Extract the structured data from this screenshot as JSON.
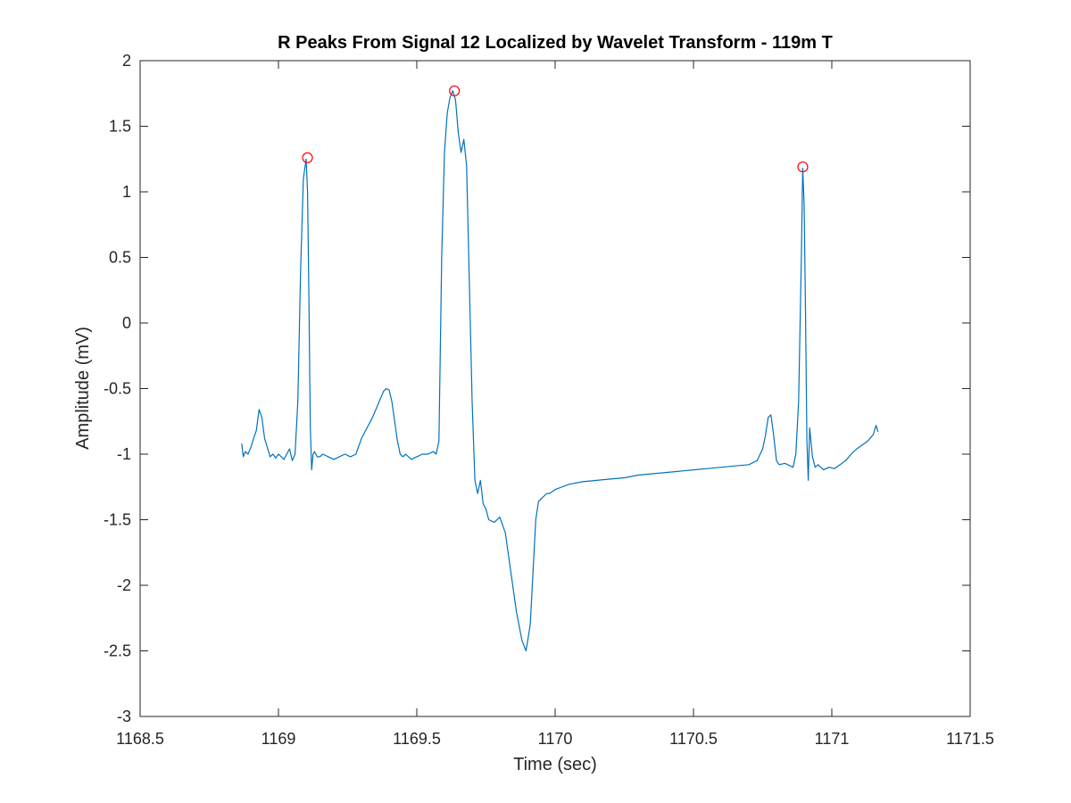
{
  "chart_data": {
    "type": "line",
    "title": "R Peaks From Signal 12 Localized by Wavelet Transform - 119m T",
    "xlabel": "Time (sec)",
    "ylabel": "Amplitude (mV)",
    "xlim": [
      1168.5,
      1171.5
    ],
    "ylim": [
      -3,
      2
    ],
    "xticks": [
      1168.5,
      1169,
      1169.5,
      1170,
      1170.5,
      1171,
      1171.5
    ],
    "xtick_labels": [
      "1168.5",
      "1169",
      "1169.5",
      "1170",
      "1170.5",
      "1171",
      "1171.5"
    ],
    "yticks": [
      -3,
      -2.5,
      -2,
      -1.5,
      -1,
      -0.5,
      0,
      0.5,
      1,
      1.5,
      2
    ],
    "ytick_labels": [
      "-3",
      "-2.5",
      "-2",
      "-1.5",
      "-1",
      "-0.5",
      "0",
      "0.5",
      "1",
      "1.5",
      "2"
    ],
    "grid": false,
    "series": [
      {
        "color": "#0072BD",
        "x": [
          1168.867,
          1168.873,
          1168.88,
          1168.89,
          1168.9,
          1168.91,
          1168.92,
          1168.93,
          1168.94,
          1168.95,
          1168.96,
          1168.97,
          1168.98,
          1168.99,
          1169.0,
          1169.01,
          1169.02,
          1169.03,
          1169.04,
          1169.05,
          1169.06,
          1169.07,
          1169.08,
          1169.09,
          1169.1,
          1169.105,
          1169.11,
          1169.115,
          1169.12,
          1169.125,
          1169.13,
          1169.14,
          1169.15,
          1169.16,
          1169.18,
          1169.2,
          1169.22,
          1169.24,
          1169.26,
          1169.28,
          1169.3,
          1169.32,
          1169.34,
          1169.36,
          1169.38,
          1169.39,
          1169.4,
          1169.41,
          1169.42,
          1169.43,
          1169.44,
          1169.45,
          1169.46,
          1169.48,
          1169.5,
          1169.52,
          1169.54,
          1169.56,
          1169.57,
          1169.58,
          1169.59,
          1169.6,
          1169.61,
          1169.62,
          1169.63,
          1169.64,
          1169.65,
          1169.66,
          1169.67,
          1169.68,
          1169.69,
          1169.7,
          1169.71,
          1169.72,
          1169.73,
          1169.74,
          1169.75,
          1169.76,
          1169.78,
          1169.8,
          1169.82,
          1169.84,
          1169.86,
          1169.88,
          1169.895,
          1169.91,
          1169.92,
          1169.93,
          1169.94,
          1169.95,
          1169.96,
          1169.97,
          1169.98,
          1170.0,
          1170.05,
          1170.1,
          1170.15,
          1170.2,
          1170.25,
          1170.3,
          1170.35,
          1170.4,
          1170.45,
          1170.5,
          1170.55,
          1170.6,
          1170.65,
          1170.7,
          1170.73,
          1170.75,
          1170.76,
          1170.77,
          1170.78,
          1170.79,
          1170.8,
          1170.81,
          1170.83,
          1170.85,
          1170.86,
          1170.87,
          1170.88,
          1170.89,
          1170.895,
          1170.9,
          1170.905,
          1170.91,
          1170.915,
          1170.92,
          1170.93,
          1170.94,
          1170.95,
          1170.97,
          1170.99,
          1171.01,
          1171.03,
          1171.05,
          1171.07,
          1171.09,
          1171.11,
          1171.13,
          1171.15,
          1171.16,
          1171.167
        ],
        "y": [
          -0.92,
          -1.02,
          -0.98,
          -1.0,
          -0.95,
          -0.88,
          -0.82,
          -0.66,
          -0.72,
          -0.88,
          -0.95,
          -1.02,
          -1.0,
          -1.03,
          -1.0,
          -1.02,
          -1.04,
          -1.0,
          -0.96,
          -1.05,
          -1.0,
          -0.6,
          0.4,
          1.1,
          1.25,
          1.0,
          0.2,
          -0.8,
          -1.12,
          -1.0,
          -0.98,
          -1.02,
          -1.02,
          -1.0,
          -1.02,
          -1.04,
          -1.02,
          -1.0,
          -1.02,
          -1.0,
          -0.88,
          -0.8,
          -0.72,
          -0.62,
          -0.52,
          -0.5,
          -0.51,
          -0.6,
          -0.75,
          -0.9,
          -1.0,
          -1.02,
          -1.0,
          -1.04,
          -1.02,
          -1.0,
          -1.0,
          -0.98,
          -1.0,
          -0.9,
          0.5,
          1.3,
          1.6,
          1.72,
          1.77,
          1.7,
          1.45,
          1.3,
          1.4,
          1.2,
          0.3,
          -0.6,
          -1.2,
          -1.3,
          -1.2,
          -1.38,
          -1.42,
          -1.5,
          -1.52,
          -1.48,
          -1.6,
          -1.9,
          -2.2,
          -2.42,
          -2.5,
          -2.3,
          -1.9,
          -1.5,
          -1.36,
          -1.34,
          -1.32,
          -1.3,
          -1.3,
          -1.27,
          -1.23,
          -1.21,
          -1.2,
          -1.19,
          -1.18,
          -1.16,
          -1.15,
          -1.14,
          -1.13,
          -1.12,
          -1.11,
          -1.1,
          -1.09,
          -1.08,
          -1.05,
          -0.96,
          -0.86,
          -0.72,
          -0.7,
          -0.86,
          -1.05,
          -1.08,
          -1.07,
          -1.09,
          -1.1,
          -1.0,
          -0.6,
          0.5,
          1.18,
          0.9,
          0.1,
          -0.9,
          -1.2,
          -0.8,
          -1.02,
          -1.1,
          -1.08,
          -1.12,
          -1.1,
          -1.11,
          -1.08,
          -1.05,
          -1.0,
          -0.96,
          -0.93,
          -0.9,
          -0.85,
          -0.78,
          -0.83
        ]
      },
      {
        "color": "#FF0000",
        "type": "scatter",
        "marker": "circle",
        "x": [
          1169.105,
          1169.636,
          1170.895
        ],
        "y": [
          1.26,
          1.77,
          1.19
        ]
      }
    ]
  }
}
